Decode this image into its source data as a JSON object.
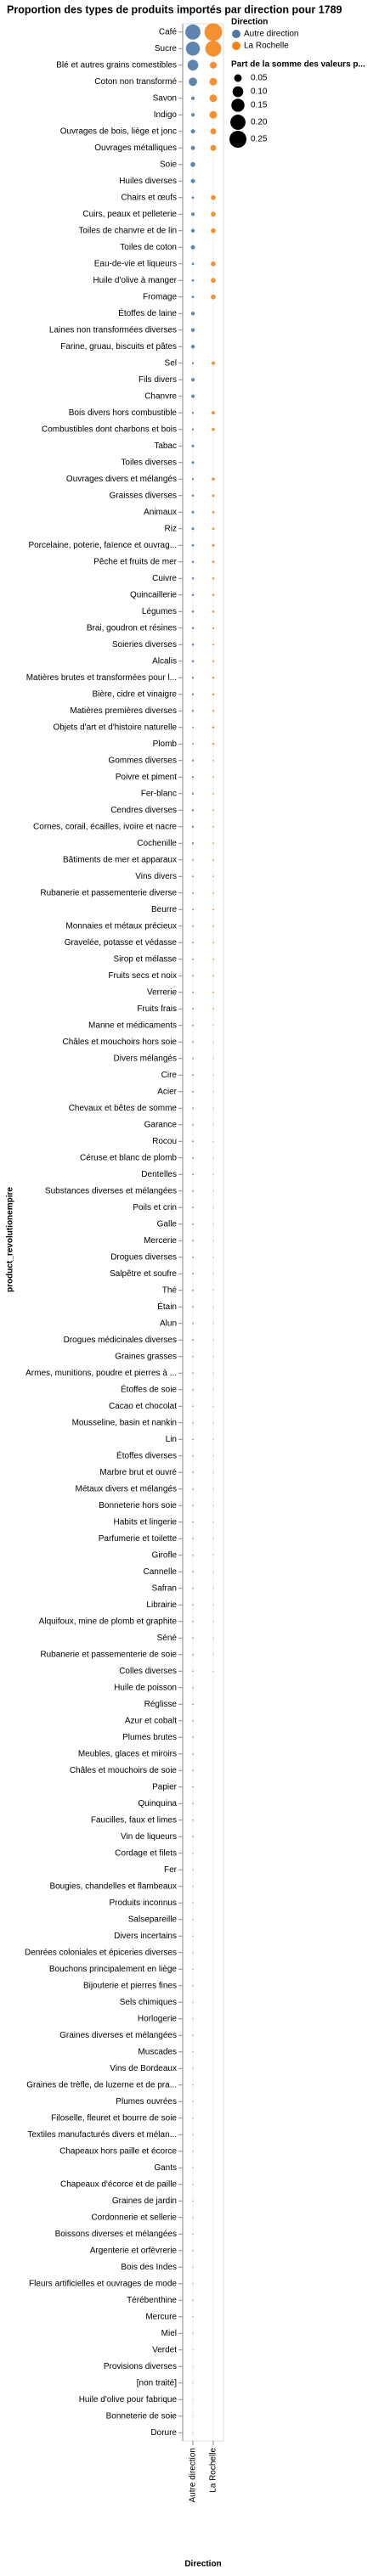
{
  "chart_data": {
    "type": "bubble",
    "title": "Proportion des types de produits importés par direction pour 1789",
    "y_label": "product_revolutionempire",
    "x_label": "Direction",
    "x_categories": [
      "Autre direction",
      "La Rochelle"
    ],
    "categories": [
      "Café",
      "Sucre",
      "Blé et autres grains comestibles",
      "Coton non transformé",
      "Savon",
      "Indigo",
      "Ouvrages de bois, liège et jonc",
      "Ouvrages métalliques",
      "Soie",
      "Huiles diverses",
      "Chairs et œufs",
      "Cuirs, peaux et pelleterie",
      "Toiles de chanvre et de lin",
      "Toiles de coton",
      "Eau-de-vie et liqueurs",
      "Huile d'olive à manger",
      "Fromage",
      "Étoffes de laine",
      "Laines non transformées diverses",
      "Farine, gruau, biscuits et pâtes",
      "Sel",
      "Fils divers",
      "Chanvre",
      "Bois divers hors combustible",
      "Combustibles dont charbons et bois",
      "Tabac",
      "Toiles diverses",
      "Ouvrages divers et mélangés",
      "Graisses diverses",
      "Animaux",
      "Riz",
      "Porcelaine, poterie, faïence et ouvrag...",
      "Pêche et fruits de mer",
      "Cuivre",
      "Quincaillerie",
      "Légumes",
      "Brai, goudron et résines",
      "Soieries diverses",
      "Alcalis",
      "Matières brutes et transformées pour l...",
      "Bière, cidre et vinaigre",
      "Matières premières diverses",
      "Objets d'art et d'histoire naturelle",
      "Plomb",
      "Gommes diverses",
      "Poivre et piment",
      "Fer-blanc",
      "Cendres diverses",
      "Cornes, corail, écailles, ivoire et nacre",
      "Cochenille",
      "Bâtiments de mer et apparaux",
      "Vins divers",
      "Rubanerie et passementerie diverse",
      "Beurre",
      "Monnaies et métaux précieux",
      "Gravelée, potasse et védasse",
      "Sirop et mélasse",
      "Fruits secs et noix",
      "Verrerie",
      "Fruits frais",
      "Manne et médicaments",
      "Châles et mouchoirs hors soie",
      "Divers mélangés",
      "Cire",
      "Acier",
      "Chevaux et bêtes de somme",
      "Garance",
      "Rocou",
      "Céruse et blanc de plomb",
      "Dentelles",
      "Substances diverses et mélangées",
      "Poils et crin",
      "Galle",
      "Mercerie",
      "Drogues diverses",
      "Salpêtre et soufre",
      "Thé",
      "Étain",
      "Alun",
      "Drogues médicinales diverses",
      "Graines grasses",
      "Armes, munitions, poudre et pierres à ...",
      "Étoffes de soie",
      "Cacao et chocolat",
      "Mousseline, basin et nankin",
      "Lin",
      "Étoffes diverses",
      "Marbre brut et ouvré",
      "Métaux divers et mélangés",
      "Bonneterie hors soie",
      "Habits et lingerie",
      "Parfumerie et toilette",
      "Girofle",
      "Cannelle",
      "Safran",
      "Librairie",
      "Alquifoux, mine de plomb et graphite",
      "Séné",
      "Rubanerie et passementerie de soie",
      "Colles diverses",
      "Huile de poisson",
      "Réglisse",
      "Azur et cobalt",
      "Plumes brutes",
      "Meubles, glaces et miroirs",
      "Châles et mouchoirs de soie",
      "Papier",
      "Quinquina",
      "Faucilles, faux et limes",
      "Vin de liqueurs",
      "Cordage et filets",
      "Fer",
      "Bougies, chandelles et flambeaux",
      "Produits inconnus",
      "Salsepareille",
      "Divers incertains",
      "Denrées coloniales et épiceries diverses",
      "Bouchons principalement en liège",
      "Bijouterie et pierres fines",
      "Sels chimiques",
      "Horlogerie",
      "Graines diverses et mélangées",
      "Muscades",
      "Vins de Bordeaux",
      "Graines de trèfle, de luzerne et de pra...",
      "Plumes ouvrées",
      "Filoselle, fleuret et bourre de soie",
      "Textiles manufacturés divers et mélan...",
      "Chapeaux hors paille et écorce",
      "Gants",
      "Chapeaux d'écorce et de paille",
      "Graines de jardin",
      "Cordonnerie et sellerie",
      "Boissons diverses et mélangées",
      "Argenterie et orfèvrerie",
      "Bois des Indes",
      "Fleurs artificielles et ouvrages de mode",
      "Térébenthine",
      "Mercure",
      "Miel",
      "Verdet",
      "Provisions diverses",
      "[non traité]",
      "Huile d'olive pour fabrique",
      "Bonneterie de soie",
      "Dorure"
    ],
    "series": [
      {
        "name": "Autre direction",
        "color": "#4c78a8",
        "values": [
          0.2,
          0.17,
          0.1,
          0.06,
          0.01,
          0.01,
          0.015,
          0.015,
          0.02,
          0.015,
          0.005,
          0.01,
          0.012,
          0.015,
          0.005,
          0.005,
          0.005,
          0.012,
          0.012,
          0.012,
          0.003,
          0.01,
          0.01,
          0.003,
          0.003,
          0.006,
          0.006,
          0.003,
          0.004,
          0.006,
          0.006,
          0.005,
          0.004,
          0.004,
          0.004,
          0.004,
          0.004,
          0.004,
          0.004,
          0.003,
          0.003,
          0.003,
          0.002,
          0.002,
          0.003,
          0.003,
          0.003,
          0.003,
          0.003,
          0.003,
          0.002,
          0.002,
          0.002,
          0.002,
          0.002,
          0.002,
          0.002,
          0.002,
          0.002,
          0.002,
          0.002,
          0.002,
          0.002,
          0.002,
          0.002,
          0.002,
          0.002,
          0.002,
          0.002,
          0.002,
          0.002,
          0.002,
          0.002,
          0.002,
          0.002,
          0.002,
          0.002,
          0.002,
          0.002,
          0.002,
          0.0015,
          0.0015,
          0.0015,
          0.0015,
          0.0015,
          0.0015,
          0.0015,
          0.0015,
          0.0015,
          0.0015,
          0.0015,
          0.0015,
          0.0015,
          0.0015,
          0.0015,
          0.0015,
          0.0015,
          0.0015,
          0.0015,
          0.0015,
          0.0015,
          0.0015,
          0.0015,
          0.0015,
          0.0015,
          0.0015,
          0.0015,
          0.0015,
          0.0015,
          0.0015,
          0.001,
          0.001,
          0.001,
          0.001,
          0.001,
          0.001,
          0.001,
          0.001,
          0.001,
          0.001,
          0.001,
          0.001,
          0.001,
          0.001,
          0.001,
          0.001,
          0.001,
          0.001,
          0.001,
          0.001,
          0.001,
          0.001,
          0.001,
          0.001,
          0.001,
          0.001,
          0.001,
          0.001,
          0.001,
          0.001,
          0.0005,
          0.0005,
          0.0005,
          0.0005,
          0.0005,
          0.0005
        ]
      },
      {
        "name": "La Rochelle",
        "color": "#f58518",
        "values": [
          0.27,
          0.22,
          0.04,
          0.05,
          0.05,
          0.05,
          0.03,
          0.03,
          null,
          null,
          0.02,
          0.02,
          0.02,
          null,
          0.02,
          0.02,
          0.02,
          null,
          null,
          null,
          0.01,
          null,
          null,
          0.01,
          0.008,
          null,
          null,
          0.008,
          0.006,
          0.005,
          0.005,
          0.006,
          0.005,
          0.004,
          0.004,
          0.004,
          0.003,
          0.003,
          0.003,
          0.004,
          0.004,
          0.003,
          0.004,
          0.004,
          0.002,
          0.002,
          0.002,
          0.002,
          0.002,
          0.002,
          0.002,
          0.002,
          0.002,
          0.002,
          0.002,
          0.002,
          0.002,
          0.002,
          0.002,
          0.002,
          0.001,
          0.001,
          0.001,
          0.001,
          0.001,
          0.001,
          0.001,
          0.001,
          0.001,
          0.001,
          0.001,
          0.001,
          0.001,
          0.001,
          0.001,
          0.001,
          0.001,
          0.001,
          0.001,
          0.001,
          0.001,
          0.001,
          0.001,
          0.001,
          0.001,
          0.001,
          0.001,
          0.001,
          0.001,
          0.001,
          0.001,
          0.001,
          0.001,
          0.001,
          0.001,
          0.001,
          0.001,
          0.001,
          0.001,
          0.001,
          null,
          null,
          null,
          null,
          null,
          null,
          null,
          null,
          null,
          null,
          null,
          null,
          null,
          null,
          null,
          null,
          null,
          null,
          null,
          null,
          null,
          null,
          null,
          null,
          null,
          null,
          null,
          null,
          null,
          null,
          null,
          null,
          null,
          null,
          null,
          null,
          null,
          null,
          null,
          null,
          null,
          null,
          null,
          null,
          null,
          null
        ]
      }
    ],
    "legend_title": "Direction",
    "size_legend": {
      "title": "Part de la somme des valeurs p...",
      "values": [
        0.05,
        {
          "value": 0.1,
          "label": "0.10"
        },
        0.15,
        {
          "value": 0.2,
          "label": "0.20"
        },
        0.25
      ]
    }
  }
}
